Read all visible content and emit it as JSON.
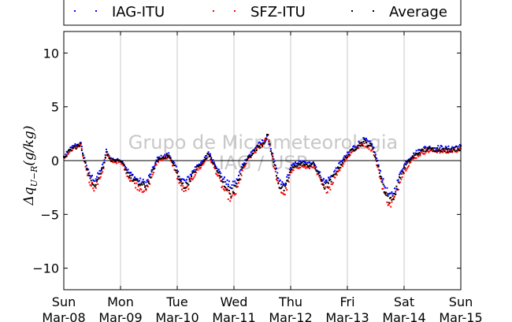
{
  "chart_data": {
    "type": "scatter",
    "title": "",
    "xlabel": "",
    "ylabel": "Δq_{U−R}(g/kg)",
    "ylabel_main": "Δq",
    "ylabel_sub": "U−R",
    "ylabel_unit": "(g/kg)",
    "ylim": [
      -12,
      12
    ],
    "yticks": [
      10,
      5,
      0,
      -5,
      -10
    ],
    "ytick_labels": [
      "10",
      "5",
      "0",
      "−5",
      "−10"
    ],
    "xlim": [
      0,
      7
    ],
    "x_unit": "days since Sun Mar-08 00:00",
    "xticks": [
      0,
      1,
      2,
      3,
      4,
      5,
      6,
      7
    ],
    "xtick_labels": [
      {
        "day": "Sun",
        "date": "Mar-08"
      },
      {
        "day": "Mon",
        "date": "Mar-09"
      },
      {
        "day": "Tue",
        "date": "Mar-10"
      },
      {
        "day": "Wed",
        "date": "Mar-11"
      },
      {
        "day": "Thu",
        "date": "Mar-12"
      },
      {
        "day": "Fri",
        "date": "Mar-13"
      },
      {
        "day": "Sat",
        "date": "Mar-14"
      },
      {
        "day": "Sun",
        "date": "Mar-15"
      }
    ],
    "grid": "vertical",
    "zero_line": true,
    "legend_position": "above",
    "x": [
      0.0,
      0.1,
      0.2,
      0.3,
      0.35,
      0.45,
      0.55,
      0.62,
      0.7,
      0.75,
      0.82,
      0.9,
      1.0,
      1.05,
      1.15,
      1.3,
      1.45,
      1.55,
      1.65,
      1.75,
      1.85,
      1.95,
      2.05,
      2.15,
      2.25,
      2.35,
      2.45,
      2.55,
      2.7,
      2.8,
      2.95,
      3.05,
      3.15,
      3.25,
      3.4,
      3.5,
      3.6,
      3.7,
      3.8,
      3.9,
      4.0,
      4.1,
      4.2,
      4.3,
      4.4,
      4.5,
      4.6,
      4.7,
      4.8,
      4.9,
      5.0,
      5.1,
      5.2,
      5.3,
      5.45,
      5.55,
      5.65,
      5.75,
      5.85,
      5.95,
      6.05,
      6.15,
      6.25,
      6.32,
      6.4,
      6.5,
      6.58,
      6.65,
      6.75,
      6.85,
      6.95,
      7.0
    ],
    "series": [
      {
        "name": "IAG-ITU",
        "color": "#0000ff",
        "marker": "dot",
        "values": [
          0.3,
          1.0,
          1.4,
          1.5,
          0.5,
          -1.3,
          -1.8,
          -1.2,
          -0.3,
          0.9,
          0.2,
          0.1,
          0.0,
          -0.2,
          -1.1,
          -1.8,
          -2.1,
          -1.0,
          0.2,
          0.4,
          0.6,
          -0.3,
          -1.6,
          -2.0,
          -1.2,
          -0.4,
          -0.1,
          0.8,
          -0.6,
          -1.6,
          -2.4,
          -1.9,
          -0.4,
          0.4,
          1.3,
          1.7,
          2.1,
          0.2,
          -2.0,
          -2.3,
          -0.6,
          -0.2,
          -0.1,
          -0.3,
          -0.1,
          -1.1,
          -2.0,
          -1.6,
          -0.8,
          0.0,
          0.6,
          1.2,
          1.6,
          1.9,
          1.4,
          -0.4,
          -2.3,
          -3.4,
          -2.6,
          -0.9,
          0.0,
          0.5,
          0.9,
          1.1,
          1.2,
          1.2,
          1.2,
          1.2,
          1.1,
          1.2,
          1.3,
          1.3
        ]
      },
      {
        "name": "SFZ-ITU",
        "color": "#ff0000",
        "marker": "dot",
        "values": [
          0.2,
          0.8,
          1.2,
          1.3,
          0.2,
          -1.9,
          -2.6,
          -1.8,
          -0.7,
          0.7,
          0.0,
          -0.1,
          -0.2,
          -0.5,
          -1.6,
          -2.4,
          -2.8,
          -1.5,
          -0.1,
          0.2,
          0.3,
          -0.7,
          -2.3,
          -2.9,
          -1.8,
          -0.9,
          -0.4,
          0.5,
          -1.2,
          -2.5,
          -3.6,
          -2.8,
          -1.0,
          0.1,
          1.0,
          1.5,
          2.4,
          -0.4,
          -2.7,
          -3.1,
          -1.2,
          -0.6,
          -0.5,
          -0.7,
          -0.5,
          -1.6,
          -2.8,
          -2.4,
          -1.3,
          -0.5,
          0.3,
          0.9,
          1.3,
          1.6,
          1.0,
          -1.0,
          -3.0,
          -4.2,
          -3.3,
          -1.5,
          -0.6,
          0.1,
          0.5,
          0.7,
          0.9,
          0.9,
          0.9,
          0.9,
          0.8,
          0.9,
          1.0,
          1.0
        ]
      },
      {
        "name": "Average",
        "color": "#000000",
        "marker": "dot",
        "values": [
          0.25,
          0.9,
          1.3,
          1.4,
          0.35,
          -1.6,
          -2.2,
          -1.5,
          -0.5,
          0.8,
          0.1,
          0.0,
          -0.1,
          -0.35,
          -1.35,
          -2.1,
          -2.45,
          -1.25,
          0.05,
          0.3,
          0.45,
          -0.5,
          -1.95,
          -2.45,
          -1.5,
          -0.65,
          -0.25,
          0.65,
          -0.9,
          -2.05,
          -3.0,
          -2.35,
          -0.7,
          0.25,
          1.15,
          1.6,
          2.25,
          -0.1,
          -2.35,
          -2.7,
          -0.9,
          -0.4,
          -0.3,
          -0.5,
          -0.3,
          -1.35,
          -2.4,
          -2.0,
          -1.05,
          -0.25,
          0.45,
          1.05,
          1.45,
          1.75,
          1.2,
          -0.7,
          -2.65,
          -3.8,
          -2.95,
          -1.2,
          -0.3,
          0.3,
          0.7,
          0.9,
          1.05,
          1.05,
          1.05,
          1.05,
          0.95,
          1.05,
          1.15,
          1.15
        ]
      }
    ]
  },
  "watermark": {
    "line1": "Grupo de Micrometeorologia",
    "line2": "IAG / USP"
  }
}
